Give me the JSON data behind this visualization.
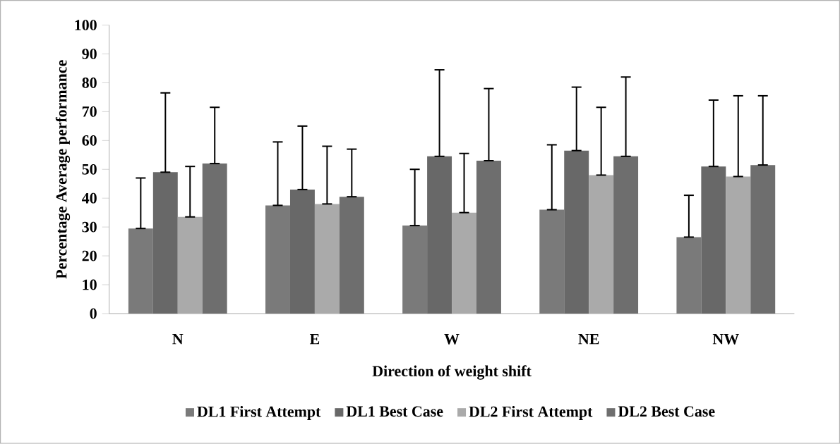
{
  "chart_data": {
    "type": "bar",
    "xlabel": "Direction of weight shift",
    "ylabel": "Percentage Average performance",
    "categories": [
      "N",
      "E",
      "W",
      "NE",
      "NW"
    ],
    "series": [
      {
        "name": "DL1 First Attempt",
        "color": "#7a7a7a",
        "values": [
          29.5,
          37.5,
          30.5,
          36,
          26.5
        ],
        "errors": [
          [
            29.5,
            47
          ],
          [
            37.5,
            59.5
          ],
          [
            30.5,
            50
          ],
          [
            36,
            58.5
          ],
          [
            26.5,
            41
          ]
        ]
      },
      {
        "name": "DL1 Best Case",
        "color": "#686868",
        "values": [
          49,
          43,
          54.5,
          56.5,
          51
        ],
        "errors": [
          [
            49,
            76.5
          ],
          [
            43,
            65
          ],
          [
            54.5,
            84.5
          ],
          [
            56.5,
            78.5
          ],
          [
            51,
            74
          ]
        ]
      },
      {
        "name": "DL2 First Attempt",
        "color": "#aaaaaa",
        "values": [
          33.5,
          38,
          35,
          48,
          47.5
        ],
        "errors": [
          [
            33.5,
            51
          ],
          [
            38,
            58
          ],
          [
            35,
            55.5
          ],
          [
            48,
            71.5
          ],
          [
            47.5,
            75.5
          ]
        ]
      },
      {
        "name": "DL2 Best Case",
        "color": "#6e6e6e",
        "values": [
          52,
          40.5,
          53,
          54.5,
          51.5
        ],
        "errors": [
          [
            52,
            71.5
          ],
          [
            40.5,
            57
          ],
          [
            53,
            78
          ],
          [
            54.5,
            82
          ],
          [
            51.5,
            75.5
          ]
        ]
      }
    ],
    "ylim": [
      0,
      100
    ],
    "yticks": [
      0,
      10,
      20,
      30,
      40,
      50,
      60,
      70,
      80,
      90,
      100
    ],
    "grid": false,
    "legend": "bottom"
  }
}
